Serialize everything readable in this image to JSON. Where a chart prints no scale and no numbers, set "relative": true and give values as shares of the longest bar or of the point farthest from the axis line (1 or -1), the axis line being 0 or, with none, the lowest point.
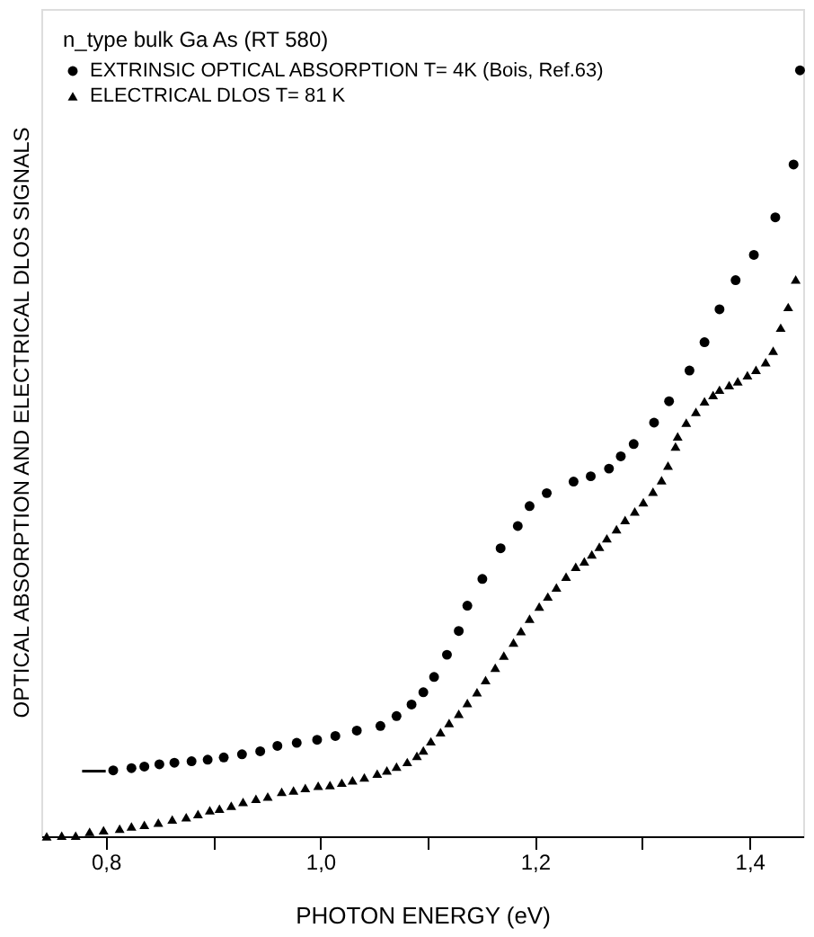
{
  "chart_data": {
    "type": "scatter",
    "relative": true,
    "xlabel": "PHOTON ENERGY (eV)",
    "ylabel": "OPTICAL ABSORPTION AND ELECTRICAL DLOS SIGNALS",
    "legend_title": "n_type bulk Ga As (RT 580)",
    "legend": "top left",
    "grid": false,
    "xlim": [
      0.74,
      1.45
    ],
    "xticks": [
      {
        "value": 0.8,
        "label": "0,8"
      },
      {
        "value": 0.9,
        "label": null
      },
      {
        "value": 1.0,
        "label": "1,0"
      },
      {
        "value": 1.1,
        "label": null
      },
      {
        "value": 1.2,
        "label": "1,2"
      },
      {
        "value": 1.3,
        "label": null
      },
      {
        "value": 1.4,
        "label": "1,4"
      }
    ],
    "series": [
      {
        "name": "EXTRINSIC OPTICAL ABSORPTION T= 4K (Bois, Ref.63)",
        "marker": "circle",
        "color": "#000000",
        "x": [
          0.807,
          0.824,
          0.836,
          0.85,
          0.864,
          0.88,
          0.895,
          0.91,
          0.927,
          0.944,
          0.96,
          0.978,
          0.997,
          1.014,
          1.034,
          1.056,
          1.071,
          1.085,
          1.096,
          1.106,
          1.118,
          1.129,
          1.137,
          1.151,
          1.168,
          1.184,
          1.195,
          1.211,
          1.236,
          1.252,
          1.269,
          1.28,
          1.292,
          1.311,
          1.325,
          1.344,
          1.358,
          1.372,
          1.387,
          1.404,
          1.424,
          1.441,
          1.447
        ],
        "values": [
          0.086,
          0.089,
          0.091,
          0.094,
          0.096,
          0.098,
          0.1,
          0.103,
          0.107,
          0.111,
          0.118,
          0.122,
          0.126,
          0.131,
          0.138,
          0.144,
          0.157,
          0.172,
          0.188,
          0.208,
          0.237,
          0.268,
          0.301,
          0.336,
          0.376,
          0.405,
          0.431,
          0.448,
          0.463,
          0.47,
          0.48,
          0.496,
          0.512,
          0.54,
          0.568,
          0.608,
          0.645,
          0.688,
          0.726,
          0.759,
          0.808,
          0.877,
          1.0
        ]
      },
      {
        "name": "ELECTRICAL DLOS T= 81 K",
        "marker": "triangle",
        "color": "#000000",
        "x": [
          0.745,
          0.759,
          0.772,
          0.785,
          0.798,
          0.813,
          0.824,
          0.836,
          0.849,
          0.862,
          0.875,
          0.886,
          0.897,
          0.906,
          0.917,
          0.928,
          0.94,
          0.951,
          0.964,
          0.975,
          0.986,
          0.998,
          1.009,
          1.02,
          1.03,
          1.041,
          1.053,
          1.062,
          1.071,
          1.081,
          1.09,
          1.096,
          1.103,
          1.112,
          1.12,
          1.129,
          1.137,
          1.146,
          1.154,
          1.163,
          1.171,
          1.18,
          1.187,
          1.195,
          1.204,
          1.212,
          1.22,
          1.229,
          1.238,
          1.246,
          1.253,
          1.26,
          1.267,
          1.276,
          1.284,
          1.293,
          1.301,
          1.31,
          1.318,
          1.324,
          1.331,
          1.333,
          1.341,
          1.35,
          1.358,
          1.366,
          1.372,
          1.381,
          1.389,
          1.398,
          1.406,
          1.415,
          1.422,
          1.429,
          1.436,
          1.443
        ],
        "values": [
          0.0,
          0.001,
          0.001,
          0.006,
          0.008,
          0.01,
          0.013,
          0.015,
          0.018,
          0.022,
          0.025,
          0.029,
          0.034,
          0.036,
          0.04,
          0.045,
          0.049,
          0.052,
          0.058,
          0.06,
          0.063,
          0.066,
          0.067,
          0.07,
          0.073,
          0.077,
          0.082,
          0.086,
          0.091,
          0.097,
          0.105,
          0.112,
          0.124,
          0.136,
          0.148,
          0.16,
          0.174,
          0.188,
          0.204,
          0.22,
          0.236,
          0.253,
          0.268,
          0.284,
          0.3,
          0.313,
          0.325,
          0.339,
          0.352,
          0.359,
          0.368,
          0.378,
          0.389,
          0.401,
          0.413,
          0.424,
          0.436,
          0.45,
          0.465,
          0.484,
          0.509,
          0.522,
          0.54,
          0.554,
          0.568,
          0.576,
          0.583,
          0.589,
          0.594,
          0.602,
          0.609,
          0.619,
          0.634,
          0.664,
          0.691,
          0.727
        ]
      },
      {
        "type": "line",
        "line_style": "solid",
        "color": "#000000",
        "x": [
          0.778,
          0.8
        ],
        "values": [
          0.085,
          0.085
        ]
      }
    ]
  }
}
